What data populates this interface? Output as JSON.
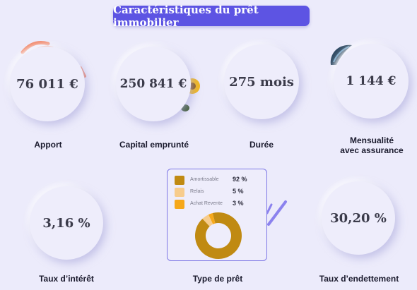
{
  "header": {
    "title": "Caractéristiques du prêt immobilier"
  },
  "metrics": {
    "apport": {
      "value": "76 011 €",
      "label": "Apport"
    },
    "capital": {
      "value": "250 841 €",
      "label": "Capital emprunté"
    },
    "duree": {
      "value": "275 mois",
      "label": "Durée"
    },
    "mensualite": {
      "value": "1 144 €",
      "label_line1": "Mensualité",
      "label_line2": "avec assurance"
    },
    "taux_interet": {
      "value": "3,16 %",
      "label": "Taux d’intérêt"
    },
    "taux_endettement": {
      "value": "30,20 %",
      "label": "Taux d’endettement"
    }
  },
  "loan_type": {
    "label": "Type de prêt",
    "legend": [
      {
        "name": "Amortissable",
        "pct": "92 %",
        "color": "#c08a12"
      },
      {
        "name": "Relais",
        "pct": "5 %",
        "color": "#f7cc8c"
      },
      {
        "name": "Achat Revente",
        "pct": "3 %",
        "color": "#f6a81a"
      }
    ]
  },
  "chart_data": {
    "type": "pie",
    "labels": [
      "Amortissable",
      "Relais",
      "Achat Revente"
    ],
    "values": [
      92,
      5,
      3
    ],
    "colors": [
      "#c08a12",
      "#f7cc8c",
      "#f6a81a"
    ]
  },
  "colors": {
    "accent": "#5d54e3",
    "background": "#ecebfb",
    "card_border": "#7e78e6"
  }
}
